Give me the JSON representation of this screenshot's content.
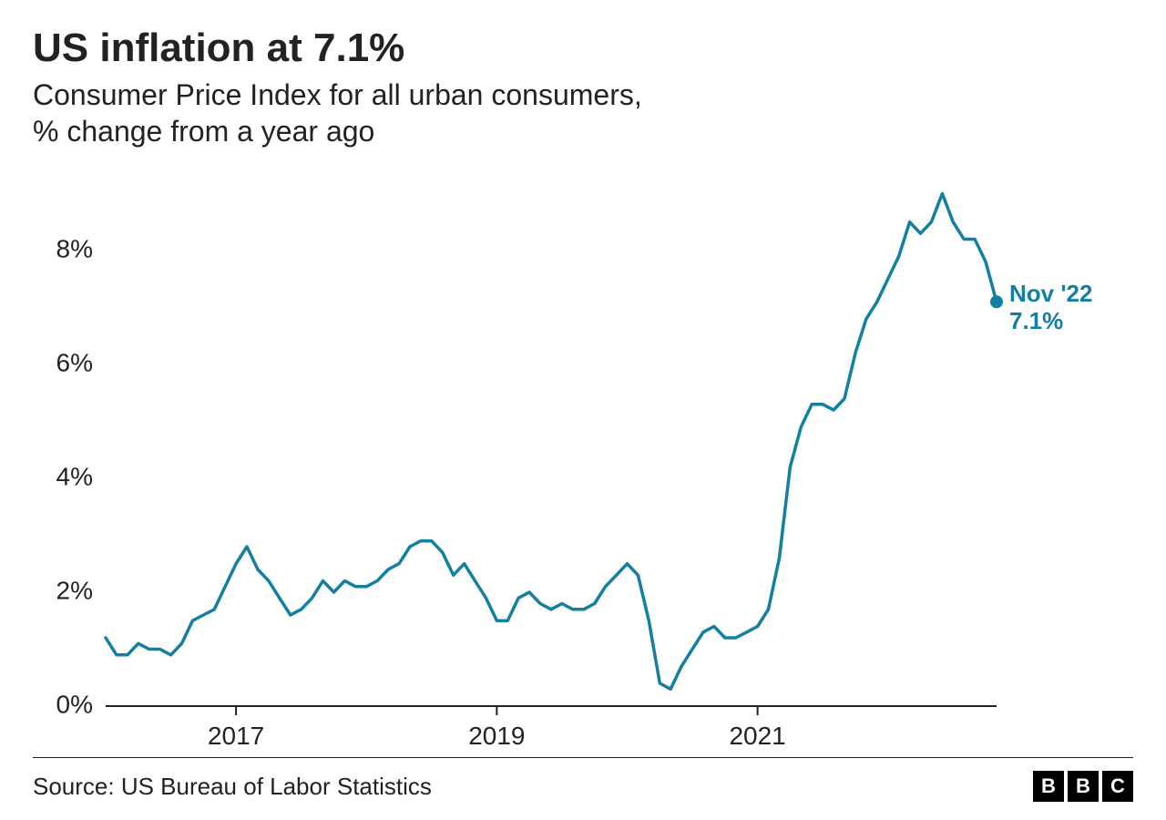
{
  "title": "US inflation at 7.1%",
  "subtitle_line1": "Consumer Price Index for all urban consumers,",
  "subtitle_line2": "% change from a year ago",
  "source_label": "Source: US Bureau of Labor Statistics",
  "logo_letters": [
    "B",
    "B",
    "C"
  ],
  "title_fontsize": 44,
  "subtitle_fontsize": 32,
  "source_fontsize": 26,
  "axis_label_fontsize": 28,
  "callout_fontsize": 26,
  "chart": {
    "type": "line",
    "background_color": "#ffffff",
    "line_color": "#1380A1",
    "line_width": 3.5,
    "marker_radius": 7,
    "axis_color": "#222222",
    "axis_width": 2,
    "tick_length": 10,
    "text_color": "#222222",
    "callout_color": "#1380A1",
    "y": {
      "min": 0,
      "max": 9.2,
      "ticks": [
        0,
        2,
        4,
        6,
        8
      ],
      "tick_labels": [
        "0%",
        "2%",
        "4%",
        "6%",
        "8%"
      ]
    },
    "x": {
      "start": "2016-01",
      "end": "2022-11",
      "tick_months": [
        "2017-01",
        "2019-01",
        "2021-01"
      ],
      "tick_labels": [
        "2017",
        "2019",
        "2021"
      ]
    },
    "months": [
      "2016-01",
      "2016-02",
      "2016-03",
      "2016-04",
      "2016-05",
      "2016-06",
      "2016-07",
      "2016-08",
      "2016-09",
      "2016-10",
      "2016-11",
      "2016-12",
      "2017-01",
      "2017-02",
      "2017-03",
      "2017-04",
      "2017-05",
      "2017-06",
      "2017-07",
      "2017-08",
      "2017-09",
      "2017-10",
      "2017-11",
      "2017-12",
      "2018-01",
      "2018-02",
      "2018-03",
      "2018-04",
      "2018-05",
      "2018-06",
      "2018-07",
      "2018-08",
      "2018-09",
      "2018-10",
      "2018-11",
      "2018-12",
      "2019-01",
      "2019-02",
      "2019-03",
      "2019-04",
      "2019-05",
      "2019-06",
      "2019-07",
      "2019-08",
      "2019-09",
      "2019-10",
      "2019-11",
      "2019-12",
      "2020-01",
      "2020-02",
      "2020-03",
      "2020-04",
      "2020-05",
      "2020-06",
      "2020-07",
      "2020-08",
      "2020-09",
      "2020-10",
      "2020-11",
      "2020-12",
      "2021-01",
      "2021-02",
      "2021-03",
      "2021-04",
      "2021-05",
      "2021-06",
      "2021-07",
      "2021-08",
      "2021-09",
      "2021-10",
      "2021-11",
      "2021-12",
      "2022-01",
      "2022-02",
      "2022-03",
      "2022-04",
      "2022-05",
      "2022-06",
      "2022-07",
      "2022-08",
      "2022-09",
      "2022-10",
      "2022-11"
    ],
    "values": [
      1.2,
      0.9,
      0.9,
      1.1,
      1.0,
      1.0,
      0.9,
      1.1,
      1.5,
      1.6,
      1.7,
      2.1,
      2.5,
      2.8,
      2.4,
      2.2,
      1.9,
      1.6,
      1.7,
      1.9,
      2.2,
      2.0,
      2.2,
      2.1,
      2.1,
      2.2,
      2.4,
      2.5,
      2.8,
      2.9,
      2.9,
      2.7,
      2.3,
      2.5,
      2.2,
      1.9,
      1.5,
      1.5,
      1.9,
      2.0,
      1.8,
      1.7,
      1.8,
      1.7,
      1.7,
      1.8,
      2.1,
      2.3,
      2.5,
      2.3,
      1.5,
      0.4,
      0.3,
      0.7,
      1.0,
      1.3,
      1.4,
      1.2,
      1.2,
      1.3,
      1.4,
      1.7,
      2.6,
      4.2,
      4.9,
      5.3,
      5.3,
      5.2,
      5.4,
      6.2,
      6.8,
      7.1,
      7.5,
      7.9,
      8.5,
      8.3,
      8.5,
      9.0,
      8.5,
      8.2,
      8.2,
      7.8,
      7.1
    ],
    "callout": {
      "line1": "Nov '22",
      "line2": "7.1%"
    }
  }
}
